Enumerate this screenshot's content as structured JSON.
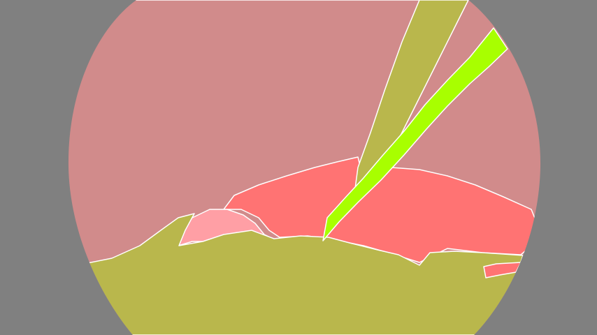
{
  "image": {
    "kind": "segmentation-mask",
    "background_color": "#808080",
    "outline_color": "#ffffff",
    "regions": [
      {
        "id": "region-tissue-upper",
        "color": "#d18b8b"
      },
      {
        "id": "region-tissue-red",
        "color": "#ff7373"
      },
      {
        "id": "region-tissue-pink",
        "color": "#ff9fa5"
      },
      {
        "id": "region-lower-olive",
        "color": "#b9b74c"
      },
      {
        "id": "region-instrument-shaft",
        "color": "#b9b74c"
      },
      {
        "id": "region-instrument-green",
        "color": "#a8ff00"
      },
      {
        "id": "region-red-sliver",
        "color": "#ff7373"
      }
    ]
  }
}
